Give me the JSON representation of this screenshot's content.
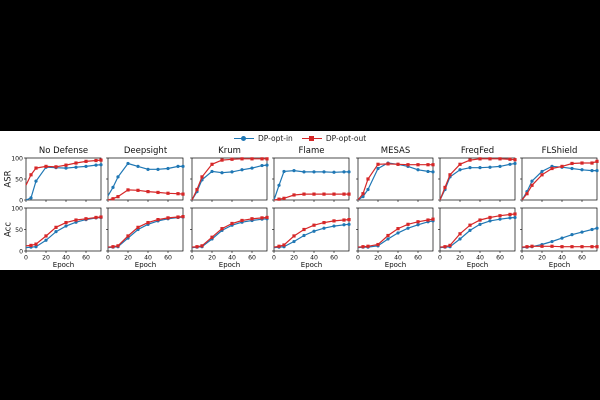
{
  "legend": {
    "series_in": "DP-opt-in",
    "series_out": "DP-opt-out"
  },
  "colors": {
    "in": "#1f77b4",
    "out": "#d62728"
  },
  "chart_data": {
    "type": "line",
    "xlabel": "Epoch",
    "xlim": [
      0,
      75
    ],
    "x_ticks": [
      0,
      20,
      40,
      60
    ],
    "ylim": [
      0,
      100
    ],
    "y_ticks": [
      0,
      50,
      100
    ],
    "row_labels": [
      "ASR",
      "Acc"
    ],
    "x": [
      0,
      5,
      10,
      20,
      30,
      40,
      50,
      60,
      70,
      75
    ],
    "panels": [
      {
        "title": "No Defense",
        "ASR": {
          "in": [
            0,
            5,
            45,
            78,
            77,
            76,
            78,
            80,
            83,
            84
          ],
          "out": [
            35,
            60,
            76,
            80,
            79,
            83,
            88,
            92,
            94,
            95
          ]
        },
        "Acc": {
          "in": [
            8,
            9,
            10,
            25,
            45,
            58,
            67,
            73,
            77,
            78
          ],
          "out": [
            12,
            13,
            16,
            35,
            55,
            66,
            72,
            75,
            78,
            79
          ]
        }
      },
      {
        "title": "Deepsight",
        "ASR": {
          "in": [
            10,
            30,
            55,
            87,
            80,
            73,
            73,
            75,
            80,
            80
          ],
          "out": [
            0,
            3,
            8,
            24,
            23,
            20,
            18,
            16,
            15,
            14
          ]
        },
        "Acc": {
          "in": [
            8,
            9,
            10,
            30,
            50,
            62,
            70,
            75,
            78,
            79
          ],
          "out": [
            9,
            10,
            12,
            35,
            55,
            66,
            73,
            77,
            79,
            80
          ]
        }
      },
      {
        "title": "Krum",
        "ASR": {
          "in": [
            0,
            20,
            48,
            68,
            65,
            67,
            72,
            76,
            82,
            83
          ],
          "out": [
            0,
            25,
            55,
            85,
            95,
            97,
            98,
            98,
            98,
            98
          ]
        },
        "Acc": {
          "in": [
            8,
            9,
            10,
            28,
            48,
            60,
            67,
            71,
            74,
            75
          ],
          "out": [
            9,
            10,
            12,
            32,
            52,
            64,
            71,
            75,
            77,
            78
          ]
        }
      },
      {
        "title": "Flame",
        "ASR": {
          "in": [
            0,
            35,
            68,
            70,
            67,
            67,
            67,
            66,
            67,
            67
          ],
          "out": [
            0,
            2,
            4,
            12,
            14,
            14,
            14,
            14,
            14,
            14
          ]
        },
        "Acc": {
          "in": [
            8,
            9,
            10,
            22,
            36,
            46,
            53,
            58,
            61,
            62
          ],
          "out": [
            9,
            11,
            14,
            35,
            50,
            60,
            66,
            70,
            72,
            73
          ]
        }
      },
      {
        "title": "MESAS",
        "ASR": {
          "in": [
            0,
            8,
            25,
            75,
            88,
            85,
            80,
            72,
            68,
            67
          ],
          "out": [
            0,
            15,
            50,
            85,
            86,
            85,
            84,
            84,
            84,
            84
          ]
        },
        "Acc": {
          "in": [
            8,
            9,
            9,
            12,
            28,
            42,
            53,
            61,
            68,
            70
          ],
          "out": [
            9,
            10,
            11,
            15,
            36,
            52,
            62,
            68,
            72,
            74
          ]
        }
      },
      {
        "title": "FreqFed",
        "ASR": {
          "in": [
            0,
            25,
            55,
            72,
            77,
            77,
            78,
            80,
            85,
            87
          ],
          "out": [
            0,
            30,
            60,
            85,
            95,
            98,
            98,
            98,
            97,
            96
          ]
        },
        "Acc": {
          "in": [
            8,
            9,
            10,
            28,
            48,
            62,
            70,
            74,
            77,
            78
          ],
          "out": [
            9,
            10,
            13,
            40,
            60,
            72,
            78,
            82,
            85,
            86
          ]
        }
      },
      {
        "title": "FLShield",
        "ASR": {
          "in": [
            0,
            20,
            45,
            68,
            80,
            78,
            75,
            72,
            70,
            70
          ],
          "out": [
            0,
            15,
            35,
            60,
            75,
            80,
            87,
            88,
            88,
            92
          ]
        },
        "Acc": {
          "in": [
            8,
            9,
            10,
            15,
            22,
            30,
            38,
            44,
            50,
            53
          ],
          "out": [
            9,
            10,
            11,
            11,
            11,
            10,
            10,
            10,
            10,
            10
          ]
        }
      }
    ]
  }
}
